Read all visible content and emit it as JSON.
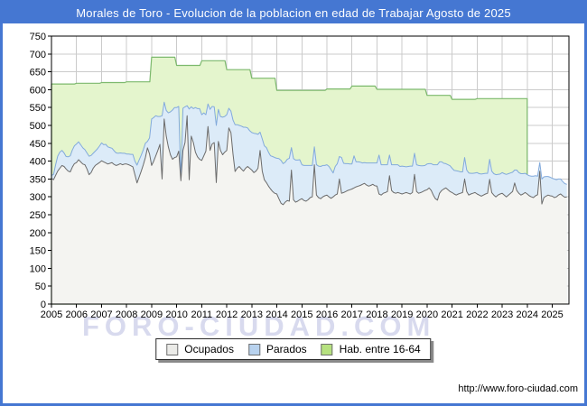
{
  "window": {
    "title": "Morales de Toro - Evolucion de la poblacion en edad de Trabajar Agosto de 2025"
  },
  "watermark": "FORO-CIUDAD.COM",
  "footer": {
    "url": "http://www.foro-ciudad.com"
  },
  "colors": {
    "title_bar": "#4577d2",
    "frame_border": "#4577d2",
    "grid": "#cbcbcb",
    "axis": "#000000",
    "watermark": "#d8daee"
  },
  "legend": {
    "items": [
      {
        "label": "Ocupados",
        "swatch_color": "#ebebe8",
        "swatch_border": "#707070"
      },
      {
        "label": "Parados",
        "swatch_color": "#b8d2ee",
        "swatch_border": "#707070"
      },
      {
        "label": "Hab. entre 16-64",
        "swatch_color": "#b6e17f",
        "swatch_border": "#707070"
      }
    ]
  },
  "chart_data": {
    "type": "area",
    "title": "Morales de Toro - Evolucion de la poblacion en edad de Trabajar Agosto de 2025",
    "xlabel": "",
    "ylabel": "",
    "ylim": [
      0,
      750
    ],
    "grid": true,
    "legend_position": "bottom",
    "x_start_year": 2005,
    "x_end_label": "Agosto 2025",
    "x_ticks": [
      2005,
      2006,
      2007,
      2008,
      2009,
      2010,
      2011,
      2012,
      2013,
      2014,
      2015,
      2016,
      2017,
      2018,
      2019,
      2020,
      2021,
      2022,
      2023,
      2024,
      2025
    ],
    "y_ticks": [
      0,
      50,
      100,
      150,
      200,
      250,
      300,
      350,
      400,
      450,
      500,
      550,
      600,
      650,
      700,
      750
    ],
    "series": [
      {
        "name": "Ocupados",
        "cadence": "monthly",
        "fill": "#f4f4f1",
        "stroke": "#6b6b6b",
        "values": [
          352,
          348,
          360,
          372,
          380,
          388,
          385,
          378,
          372,
          370,
          383,
          393,
          396,
          404,
          398,
          392,
          390,
          378,
          362,
          368,
          380,
          388,
          392,
          396,
          401,
          398,
          395,
          392,
          394,
          396,
          391,
          388,
          390,
          393,
          390,
          392,
          392,
          390,
          387,
          384,
          362,
          339,
          355,
          372,
          390,
          410,
          437,
          420,
          388,
          400,
          415,
          430,
          447,
          350,
          518,
          470,
          440,
          418,
          405,
          410,
          412,
          428,
          345,
          430,
          452,
          527,
          348,
          470,
          452,
          425,
          412,
          405,
          402,
          415,
          428,
          497,
          430,
          448,
          452,
          340,
          455,
          430,
          418,
          425,
          430,
          493,
          480,
          420,
          371,
          380,
          385,
          378,
          372,
          380,
          385,
          380,
          375,
          368,
          372,
          380,
          430,
          372,
          348,
          340,
          330,
          322,
          315,
          310,
          308,
          295,
          282,
          278,
          285,
          290,
          288,
          375,
          292,
          285,
          288,
          292,
          295,
          290,
          288,
          292,
          298,
          300,
          390,
          305,
          298,
          295,
          300,
          303,
          305,
          300,
          296,
          300,
          305,
          308,
          350,
          310,
          312,
          315,
          318,
          320,
          322,
          325,
          328,
          330,
          332,
          335,
          338,
          333,
          330,
          332,
          335,
          331,
          330,
          308,
          305,
          310,
          312,
          315,
          359,
          318,
          312,
          310,
          312,
          310,
          308,
          310,
          312,
          310,
          308,
          312,
          363,
          315,
          310,
          312,
          315,
          318,
          320,
          325,
          318,
          305,
          295,
          291,
          310,
          318,
          322,
          325,
          320,
          315,
          312,
          308,
          305,
          308,
          310,
          312,
          350,
          315,
          305,
          308,
          310,
          312,
          308,
          305,
          302,
          305,
          308,
          310,
          349,
          312,
          305,
          300,
          305,
          308,
          310,
          305,
          300,
          305,
          310,
          315,
          339,
          318,
          310,
          305,
          308,
          312,
          308,
          303,
          300,
          298,
          303,
          306,
          372,
          280,
          298,
          302,
          305,
          303,
          302,
          298,
          300,
          305,
          308,
          303,
          299,
          300
        ]
      },
      {
        "name": "Parados",
        "cadence": "monthly",
        "stacked_on": "Ocupados",
        "fill": "#dcebf8",
        "stroke": "#82aadc",
        "values": [
          8,
          15,
          30,
          42,
          45,
          42,
          38,
          35,
          40,
          45,
          48,
          50,
          52,
          50,
          48,
          45,
          42,
          45,
          52,
          48,
          42,
          40,
          42,
          46,
          50,
          48,
          52,
          48,
          44,
          40,
          38,
          35,
          32,
          30,
          32,
          30,
          28,
          30,
          32,
          35,
          38,
          50,
          48,
          45,
          42,
          40,
          18,
          45,
          130,
          122,
          112,
          95,
          78,
          177,
          47,
          72,
          95,
          120,
          138,
          140,
          138,
          125,
          5,
          118,
          100,
          28,
          198,
          82,
          95,
          125,
          135,
          142,
          128,
          120,
          102,
          63,
          115,
          105,
          100,
          160,
          90,
          95,
          105,
          100,
          100,
          55,
          60,
          95,
          131,
          122,
          115,
          120,
          123,
          115,
          108,
          105,
          105,
          110,
          105,
          95,
          51,
          90,
          95,
          98,
          95,
          93,
          98,
          100,
          100,
          112,
          120,
          115,
          112,
          115,
          120,
          63,
          115,
          118,
          115,
          112,
          95,
          98,
          100,
          96,
          90,
          88,
          50,
          85,
          88,
          90,
          88,
          85,
          85,
          85,
          80,
          67,
          80,
          85,
          63,
          100,
          82,
          78,
          75,
          72,
          70,
          90,
          70,
          68,
          65,
          60,
          58,
          62,
          65,
          63,
          60,
          64,
          65,
          109,
          85,
          80,
          78,
          75,
          58,
          72,
          78,
          80,
          78,
          75,
          78,
          75,
          72,
          75,
          78,
          74,
          59,
          75,
          78,
          75,
          72,
          70,
          72,
          68,
          75,
          85,
          95,
          99,
          88,
          80,
          72,
          68,
          70,
          72,
          68,
          66,
          68,
          64,
          60,
          58,
          60,
          60,
          62,
          58,
          56,
          55,
          60,
          60,
          62,
          60,
          58,
          56,
          56,
          60,
          60,
          62,
          58,
          56,
          58,
          60,
          63,
          60,
          57,
          54,
          36,
          57,
          58,
          60,
          57,
          54,
          54,
          56,
          58,
          60,
          56,
          52,
          24,
          70,
          58,
          55,
          52,
          52,
          50,
          52,
          48,
          45,
          42,
          40,
          38,
          35
        ]
      },
      {
        "name": "Hab. entre 16-64",
        "cadence": "annual",
        "fill": "#e4f5cd",
        "stroke": "#7cb96d",
        "years_start": 2005,
        "values": [
          616,
          618,
          620,
          622,
          691,
          668,
          681,
          656,
          632,
          598,
          598,
          602,
          610,
          601,
          601,
          584,
          573,
          575,
          575
        ]
      }
    ]
  }
}
